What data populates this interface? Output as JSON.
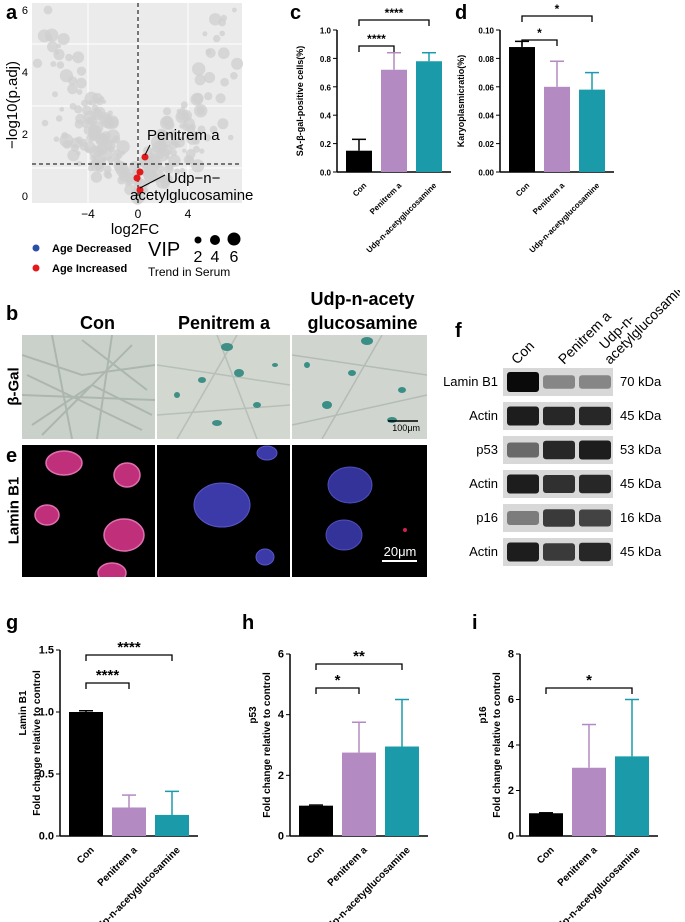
{
  "panels": {
    "a": "a",
    "b": "b",
    "c": "c",
    "d": "d",
    "e": "e",
    "f": "f",
    "g": "g",
    "h": "h",
    "i": "i"
  },
  "volcano": {
    "xlabel": "log2FC",
    "ylabel": "−log10(p.adj)",
    "xticks": [
      "−4",
      "0",
      "4"
    ],
    "yticks": [
      "0",
      "2",
      "4",
      "6"
    ],
    "annotation_1": "Penitrem a",
    "annotation_2a": "Udp−n−",
    "annotation_2b": "acetylglucosamine",
    "legend_decreased": "Age Decreased",
    "legend_increased": "Age Increased",
    "legend_trend": "Trend in Serum",
    "legend_vip": "VIP",
    "vip_sizes": [
      "2",
      "4",
      "6"
    ],
    "color_decreased": "#2a4fa8",
    "color_increased": "#e31a1c"
  },
  "microscopy": {
    "col_con": "Con",
    "col_pen": "Penitrem a",
    "col_udp_1": "Udp-n-acety",
    "col_udp_2": "glucosamine",
    "row_bgal": "β-Gal",
    "row_lamin": "Lamin B1",
    "scale_bgal": "100μm",
    "scale_lamin": "20μm"
  },
  "western": {
    "col_con": "Con",
    "col_pen": "Penitrem a",
    "col_udp_1": "Udp-n-",
    "col_udp_2": "acetylglucosamine",
    "rows": [
      {
        "label": "Lamin B1",
        "kda": "70 kDa"
      },
      {
        "label": "Actin",
        "kda": "45 kDa"
      },
      {
        "label": "p53",
        "kda": "53 kDa"
      },
      {
        "label": "Actin",
        "kda": "45 kDa"
      },
      {
        "label": "p16",
        "kda": "16 kDa"
      },
      {
        "label": "Actin",
        "kda": "45 kDa"
      }
    ]
  },
  "colors": {
    "con": "#000000",
    "pen": "#b48ac2",
    "udp": "#1b9aaa"
  },
  "chart_data": [
    {
      "panel": "c",
      "type": "bar",
      "ylabel": "SA-β-gal-positive cells(%)",
      "categories": [
        "Con",
        "Penitrem a",
        "Udp-n-acetyglucosamine"
      ],
      "values": [
        0.15,
        0.72,
        0.78
      ],
      "errors": [
        0.08,
        0.12,
        0.06
      ],
      "ylim": [
        0,
        1.0
      ],
      "yticks": [
        "0.0",
        "0.2",
        "0.4",
        "0.6",
        "0.8",
        "1.0"
      ],
      "significance": [
        {
          "from": 0,
          "to": 1,
          "label": "****"
        },
        {
          "from": 0,
          "to": 2,
          "label": "****"
        }
      ]
    },
    {
      "panel": "d",
      "type": "bar",
      "ylabel": "Karyoplasmicratio(%)",
      "categories": [
        "Con",
        "Penitrem a",
        "Udp-n-acetyglucosamine"
      ],
      "values": [
        0.088,
        0.06,
        0.058
      ],
      "errors": [
        0.004,
        0.018,
        0.012
      ],
      "ylim": [
        0,
        0.1
      ],
      "yticks": [
        "0.00",
        "0.02",
        "0.04",
        "0.06",
        "0.08",
        "0.10"
      ],
      "significance": [
        {
          "from": 0,
          "to": 1,
          "label": "*"
        },
        {
          "from": 0,
          "to": 2,
          "label": "*"
        }
      ]
    },
    {
      "panel": "g",
      "type": "bar",
      "ylabel": "Fold change relative to control",
      "ylabel_top": "Lamin B1",
      "categories": [
        "Con",
        "Penitrem a",
        "Udp-n-acetyglucosamine"
      ],
      "values": [
        1.0,
        0.23,
        0.17
      ],
      "errors": [
        0.01,
        0.1,
        0.19
      ],
      "ylim": [
        0,
        1.5
      ],
      "yticks": [
        "0.0",
        "0.5",
        "1.0",
        "1.5"
      ],
      "significance": [
        {
          "from": 0,
          "to": 1,
          "label": "****"
        },
        {
          "from": 0,
          "to": 2,
          "label": "****"
        }
      ]
    },
    {
      "panel": "h",
      "type": "bar",
      "ylabel": "Fold change relative to control",
      "ylabel_top": "p53",
      "categories": [
        "Con",
        "Penitrem a",
        "Udp-n-acetyglucosamine"
      ],
      "values": [
        1.0,
        2.75,
        2.95
      ],
      "errors": [
        0.02,
        1.0,
        1.55
      ],
      "ylim": [
        0,
        6
      ],
      "yticks": [
        "0",
        "2",
        "4",
        "6"
      ],
      "significance": [
        {
          "from": 0,
          "to": 1,
          "label": "*"
        },
        {
          "from": 0,
          "to": 2,
          "label": "**"
        }
      ]
    },
    {
      "panel": "i",
      "type": "bar",
      "ylabel": "Fold change relative to control",
      "ylabel_top": "p16",
      "categories": [
        "Con",
        "Penitrem a",
        "Udp-n-acetyglucosamine"
      ],
      "values": [
        1.0,
        3.0,
        3.5
      ],
      "errors": [
        0.02,
        1.9,
        2.5
      ],
      "ylim": [
        0,
        8
      ],
      "yticks": [
        "0",
        "2",
        "4",
        "6",
        "8"
      ],
      "significance": [
        {
          "from": 0,
          "to": 2,
          "label": "*"
        }
      ]
    }
  ]
}
